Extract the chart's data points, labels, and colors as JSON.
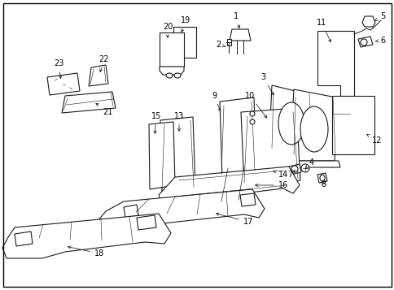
{
  "background_color": "#ffffff",
  "border_color": "#000000",
  "fig_width": 4.85,
  "fig_height": 3.57,
  "dpi": 100,
  "line_color": "#1a1a1a",
  "text_color": "#000000",
  "font_size": 7.0
}
